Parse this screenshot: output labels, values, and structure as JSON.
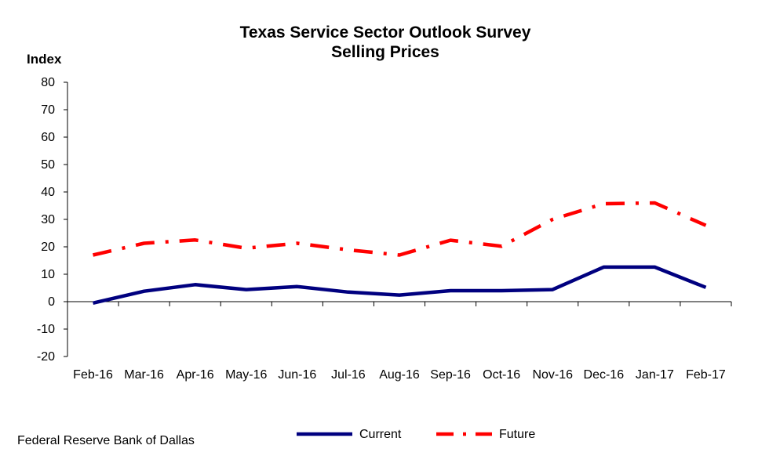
{
  "chart_data": {
    "type": "line",
    "title": "Texas Service Sector Outlook Survey",
    "subtitle": "Selling Prices",
    "ylabel": "Index",
    "xlabel": "",
    "ylim": [
      -20,
      80
    ],
    "yticks": [
      80,
      70,
      60,
      50,
      40,
      30,
      20,
      10,
      0,
      -10,
      -20
    ],
    "categories": [
      "Feb-16",
      "Mar-16",
      "Apr-16",
      "May-16",
      "Jun-16",
      "Jul-16",
      "Aug-16",
      "Sep-16",
      "Oct-16",
      "Nov-16",
      "Dec-16",
      "Jan-17",
      "Feb-17"
    ],
    "series": [
      {
        "name": "Current",
        "color": "#00007f",
        "style": "solid",
        "values": [
          -0.5,
          3.8,
          6.2,
          4.4,
          5.5,
          3.5,
          2.4,
          4.0,
          4.0,
          4.4,
          12.6,
          12.6,
          5.2
        ]
      },
      {
        "name": "Future",
        "color": "#ff0000",
        "style": "dash-dot",
        "values": [
          17.0,
          21.3,
          22.5,
          19.5,
          21.3,
          18.9,
          17.0,
          22.4,
          20.2,
          30.0,
          35.7,
          36.0,
          27.8
        ]
      }
    ],
    "grid": false,
    "legend_position": "bottom"
  },
  "footer": {
    "source": "Federal Reserve Bank of Dallas"
  }
}
